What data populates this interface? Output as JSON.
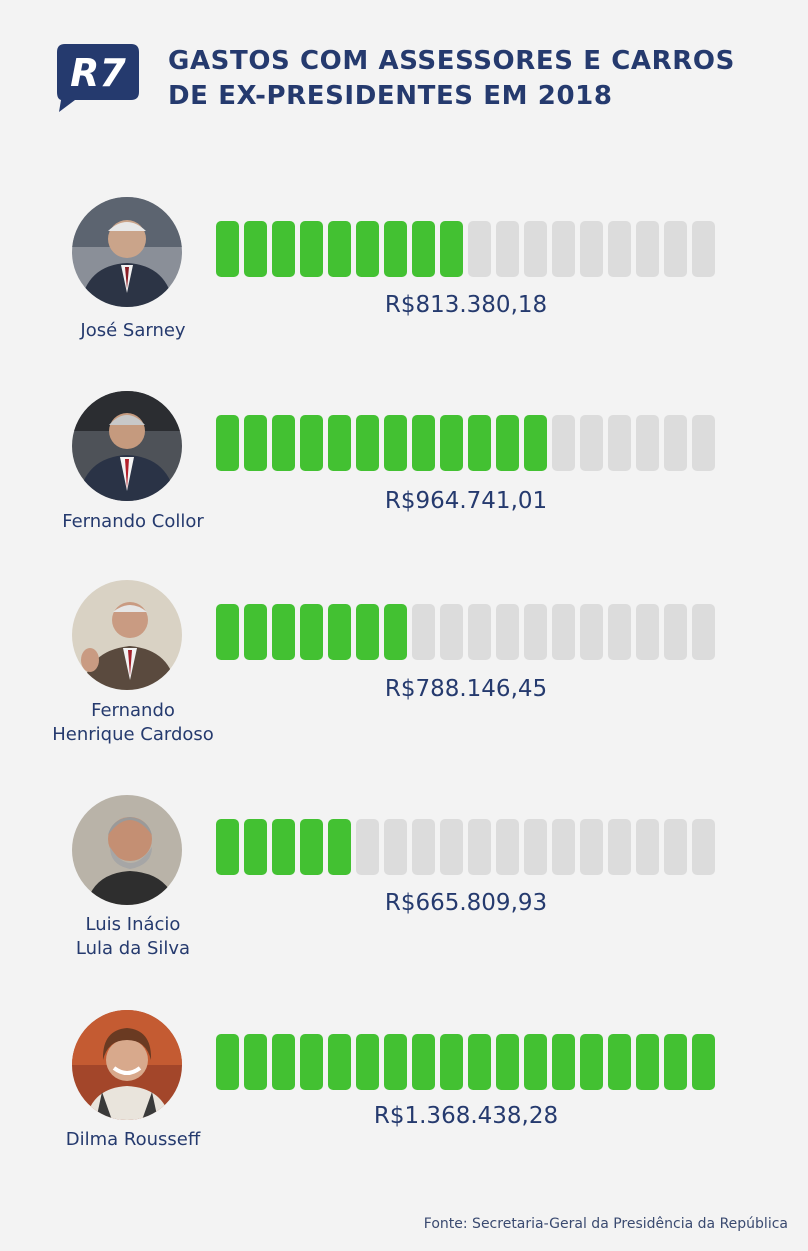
{
  "title": {
    "line1": "GASTOS COM ASSESSORES E CARROS",
    "line2": "DE EX-PRESIDENTES EM 2018"
  },
  "logo_text": "R7",
  "source": "Fonte: Secretaria-Geral da Presidência da República",
  "colors": {
    "filled": "#43c132",
    "empty": "#dcdcdc",
    "text": "#253a6e",
    "logo": "#253a6e",
    "background": "#f3f3f3"
  },
  "chart_data": {
    "type": "bar",
    "title": "GASTOS COM ASSESSORES E CARROS DE EX-PRESIDENTES EM 2018",
    "segments_total": 18,
    "categories": [
      "José Sarney",
      "Fernando Collor",
      "Fernando Henrique Cardoso",
      "Luis Inácio Lula da Silva",
      "Dilma Rousseff"
    ],
    "rows": [
      {
        "name_lines": [
          "José Sarney"
        ],
        "value": 813380.18,
        "label": "R$813.380,18",
        "filled_segments": 9
      },
      {
        "name_lines": [
          "Fernando Collor"
        ],
        "value": 964741.01,
        "label": "R$964.741,01",
        "filled_segments": 12
      },
      {
        "name_lines": [
          "Fernando",
          "Henrique Cardoso"
        ],
        "value": 788146.45,
        "label": "R$788.146,45",
        "filled_segments": 7
      },
      {
        "name_lines": [
          "Luis Inácio",
          "Lula da Silva"
        ],
        "value": 665809.93,
        "label": "R$665.809,93",
        "filled_segments": 5
      },
      {
        "name_lines": [
          "Dilma Rousseff"
        ],
        "value": 1368438.28,
        "label": "R$1.368.438,28",
        "filled_segments": 18
      }
    ]
  }
}
